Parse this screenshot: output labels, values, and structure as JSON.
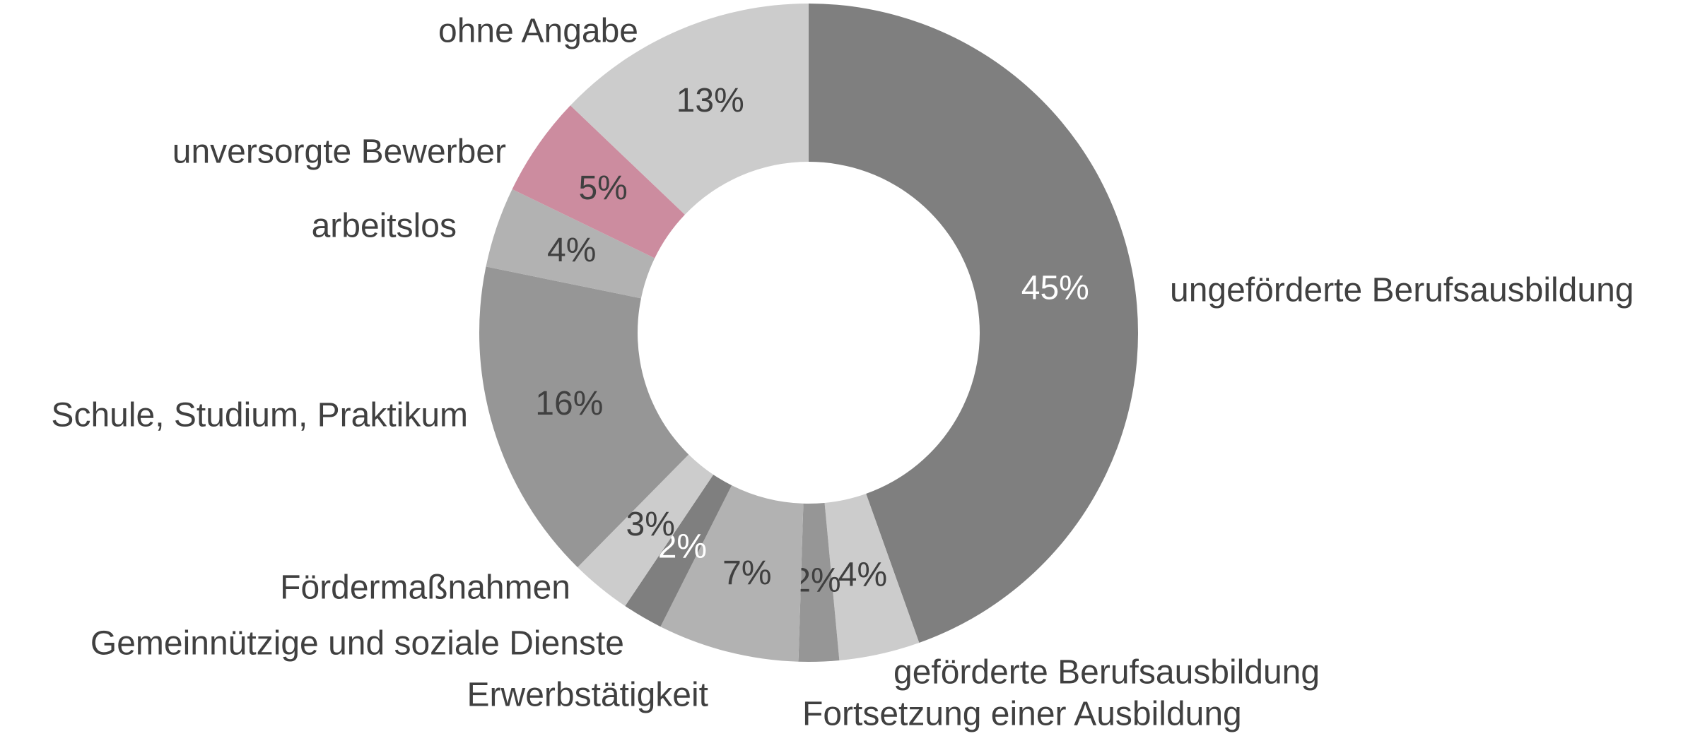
{
  "chart_data": {
    "type": "donut",
    "categories": [
      "ungeförderte Berufsausbildung",
      "geförderte Berufsausbildung",
      "Fortsetzung einer Ausbildung",
      "Erwerbstätigkeit",
      "Gemeinnützige und soziale Dienste",
      "Fördermaßnahmen",
      "Schule, Studium, Praktikum",
      "arbeitslos",
      "unversorgte Bewerber",
      "ohne Angabe"
    ],
    "values": [
      45,
      4,
      2,
      7,
      2,
      3,
      16,
      4,
      5,
      13
    ],
    "value_labels": [
      "45%",
      "4%",
      "2%",
      "7%",
      "2%",
      "3%",
      "16%",
      "4%",
      "5%",
      "13%"
    ],
    "colors": [
      "#7f7f7f",
      "#cccccc",
      "#969696",
      "#b2b2b2",
      "#7f7f7f",
      "#cccccc",
      "#969696",
      "#b2b2b2",
      "#cc8c9f",
      "#cccccc"
    ]
  }
}
